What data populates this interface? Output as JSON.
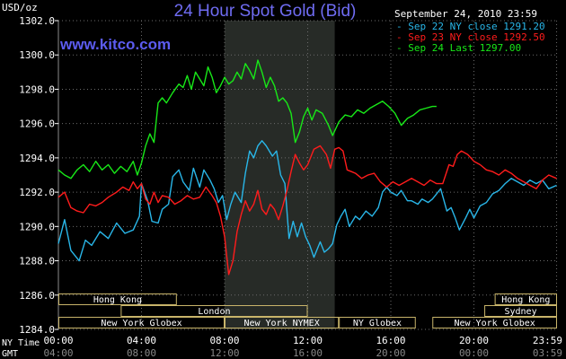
{
  "chart_data": {
    "type": "line",
    "title": "24 Hour Spot Gold (Bid)",
    "watermark": "www.kitco.com",
    "ylabel": "USD/oz",
    "date": "September 24, 2010 23:59",
    "ylim": [
      1284,
      1302
    ],
    "yticks": [
      "1302.0",
      "1300.0",
      "1298.0",
      "1296.0",
      "1294.0",
      "1292.0",
      "1290.0",
      "1288.0",
      "1286.0",
      "1284.0"
    ],
    "ytick_values": [
      1302,
      1300,
      1298,
      1296,
      1294,
      1292,
      1290,
      1288,
      1286,
      1284
    ],
    "xlim": [
      0,
      24
    ],
    "x_ticks_ny": [
      "00:00",
      "04:00",
      "08:00",
      "12:00",
      "16:00",
      "20:00",
      "23:59"
    ],
    "x_ticks_gmt": [
      "04:00",
      "08:00",
      "12:00",
      "16:00",
      "20:00",
      "00:00",
      "03:59"
    ],
    "x_tick_hours": [
      0,
      4,
      8,
      12,
      16,
      20,
      23.98
    ],
    "ny_time_label": "NY Time",
    "gmt_label": "GMT",
    "highlight_hours": [
      8,
      13.3
    ],
    "series": [
      {
        "name": "Sep 22 NY close 1291.20",
        "color": "#29b6e8",
        "points": [
          [
            0,
            1289.0
          ],
          [
            0.3,
            1290.4
          ],
          [
            0.6,
            1288.6
          ],
          [
            1.0,
            1288.0
          ],
          [
            1.3,
            1289.2
          ],
          [
            1.6,
            1288.9
          ],
          [
            2.0,
            1289.7
          ],
          [
            2.4,
            1289.3
          ],
          [
            2.8,
            1290.2
          ],
          [
            3.2,
            1289.6
          ],
          [
            3.6,
            1289.8
          ],
          [
            3.9,
            1290.6
          ],
          [
            4.0,
            1292.5
          ],
          [
            4.3,
            1291.5
          ],
          [
            4.5,
            1290.3
          ],
          [
            4.8,
            1290.2
          ],
          [
            5.0,
            1291.0
          ],
          [
            5.3,
            1291.3
          ],
          [
            5.5,
            1292.9
          ],
          [
            5.8,
            1293.3
          ],
          [
            6.0,
            1292.6
          ],
          [
            6.3,
            1292.1
          ],
          [
            6.5,
            1293.4
          ],
          [
            6.8,
            1292.3
          ],
          [
            7.0,
            1293.3
          ],
          [
            7.3,
            1292.7
          ],
          [
            7.5,
            1292.2
          ],
          [
            7.7,
            1291.4
          ],
          [
            7.9,
            1291.8
          ],
          [
            8.1,
            1290.4
          ],
          [
            8.3,
            1291.3
          ],
          [
            8.5,
            1292.0
          ],
          [
            8.8,
            1291.4
          ],
          [
            9.0,
            1293.1
          ],
          [
            9.2,
            1294.4
          ],
          [
            9.4,
            1294.0
          ],
          [
            9.6,
            1294.7
          ],
          [
            9.8,
            1295.0
          ],
          [
            10.0,
            1294.7
          ],
          [
            10.3,
            1294.1
          ],
          [
            10.5,
            1294.4
          ],
          [
            10.7,
            1293.0
          ],
          [
            10.9,
            1292.5
          ],
          [
            11.1,
            1289.3
          ],
          [
            11.3,
            1290.3
          ],
          [
            11.5,
            1289.4
          ],
          [
            11.7,
            1290.2
          ],
          [
            11.9,
            1289.4
          ],
          [
            12.1,
            1288.9
          ],
          [
            12.3,
            1288.2
          ],
          [
            12.6,
            1289.1
          ],
          [
            12.8,
            1288.5
          ],
          [
            13.0,
            1288.7
          ],
          [
            13.2,
            1289.0
          ],
          [
            13.4,
            1290.1
          ],
          [
            13.6,
            1290.6
          ],
          [
            13.8,
            1291.0
          ],
          [
            14.0,
            1290.0
          ],
          [
            14.3,
            1290.6
          ],
          [
            14.5,
            1290.4
          ],
          [
            14.8,
            1290.9
          ],
          [
            15.1,
            1290.6
          ],
          [
            15.4,
            1291.1
          ],
          [
            15.6,
            1292.0
          ],
          [
            15.8,
            1292.3
          ],
          [
            16.0,
            1292.0
          ],
          [
            16.3,
            1291.8
          ],
          [
            16.5,
            1292.1
          ],
          [
            16.8,
            1291.5
          ],
          [
            17.0,
            1291.5
          ],
          [
            17.3,
            1291.3
          ],
          [
            17.5,
            1291.6
          ],
          [
            17.8,
            1291.4
          ],
          [
            18.0,
            1291.6
          ],
          [
            18.4,
            1292.2
          ],
          [
            18.7,
            1290.9
          ],
          [
            18.9,
            1291.1
          ],
          [
            19.1,
            1290.5
          ],
          [
            19.3,
            1289.8
          ],
          [
            19.6,
            1290.5
          ],
          [
            19.8,
            1291.0
          ],
          [
            20.0,
            1290.5
          ],
          [
            20.3,
            1291.2
          ],
          [
            20.6,
            1291.4
          ],
          [
            20.9,
            1291.9
          ],
          [
            21.2,
            1292.1
          ],
          [
            21.5,
            1292.5
          ],
          [
            21.8,
            1292.8
          ],
          [
            22.1,
            1292.6
          ],
          [
            22.4,
            1292.4
          ],
          [
            22.7,
            1292.7
          ],
          [
            23.0,
            1292.5
          ],
          [
            23.3,
            1292.7
          ],
          [
            23.6,
            1292.2
          ],
          [
            23.98,
            1292.4
          ]
        ]
      },
      {
        "name": "Sep 23 NY close 1292.50",
        "color": "#ff1c1c",
        "points": [
          [
            0,
            1291.7
          ],
          [
            0.3,
            1292.0
          ],
          [
            0.6,
            1291.1
          ],
          [
            0.9,
            1290.9
          ],
          [
            1.2,
            1290.8
          ],
          [
            1.5,
            1291.3
          ],
          [
            1.8,
            1291.2
          ],
          [
            2.1,
            1291.4
          ],
          [
            2.4,
            1291.7
          ],
          [
            2.8,
            1292.0
          ],
          [
            3.1,
            1292.3
          ],
          [
            3.4,
            1292.1
          ],
          [
            3.6,
            1292.6
          ],
          [
            3.8,
            1292.2
          ],
          [
            4.0,
            1292.5
          ],
          [
            4.2,
            1291.6
          ],
          [
            4.4,
            1291.3
          ],
          [
            4.6,
            1292.0
          ],
          [
            4.8,
            1291.4
          ],
          [
            5.0,
            1291.8
          ],
          [
            5.3,
            1291.7
          ],
          [
            5.6,
            1291.3
          ],
          [
            5.9,
            1291.5
          ],
          [
            6.2,
            1291.8
          ],
          [
            6.5,
            1291.6
          ],
          [
            6.8,
            1291.7
          ],
          [
            7.1,
            1292.3
          ],
          [
            7.4,
            1291.8
          ],
          [
            7.6,
            1291.4
          ],
          [
            7.8,
            1290.6
          ],
          [
            8.0,
            1289.4
          ],
          [
            8.2,
            1287.2
          ],
          [
            8.4,
            1288.0
          ],
          [
            8.6,
            1289.7
          ],
          [
            8.8,
            1290.7
          ],
          [
            9.0,
            1291.5
          ],
          [
            9.2,
            1290.9
          ],
          [
            9.4,
            1291.3
          ],
          [
            9.6,
            1292.1
          ],
          [
            9.8,
            1291.0
          ],
          [
            10.0,
            1290.7
          ],
          [
            10.2,
            1291.3
          ],
          [
            10.4,
            1291.0
          ],
          [
            10.6,
            1290.4
          ],
          [
            10.8,
            1291.2
          ],
          [
            11.0,
            1292.1
          ],
          [
            11.2,
            1293.2
          ],
          [
            11.4,
            1294.2
          ],
          [
            11.6,
            1293.7
          ],
          [
            11.8,
            1293.3
          ],
          [
            12.0,
            1293.6
          ],
          [
            12.3,
            1294.5
          ],
          [
            12.6,
            1294.7
          ],
          [
            12.9,
            1294.2
          ],
          [
            13.1,
            1293.4
          ],
          [
            13.3,
            1294.5
          ],
          [
            13.5,
            1294.6
          ],
          [
            13.7,
            1294.4
          ],
          [
            13.9,
            1293.3
          ],
          [
            14.1,
            1293.2
          ],
          [
            14.3,
            1293.1
          ],
          [
            14.6,
            1292.8
          ],
          [
            14.9,
            1293.0
          ],
          [
            15.2,
            1293.1
          ],
          [
            15.5,
            1292.6
          ],
          [
            15.8,
            1292.3
          ],
          [
            16.1,
            1292.6
          ],
          [
            16.4,
            1292.4
          ],
          [
            16.7,
            1292.6
          ],
          [
            17.0,
            1292.8
          ],
          [
            17.3,
            1292.6
          ],
          [
            17.6,
            1292.4
          ],
          [
            17.9,
            1292.7
          ],
          [
            18.2,
            1292.5
          ],
          [
            18.5,
            1292.5
          ],
          [
            18.8,
            1293.6
          ],
          [
            19.0,
            1293.5
          ],
          [
            19.2,
            1294.2
          ],
          [
            19.4,
            1294.4
          ],
          [
            19.7,
            1294.2
          ],
          [
            20.0,
            1293.8
          ],
          [
            20.3,
            1293.6
          ],
          [
            20.6,
            1293.3
          ],
          [
            20.9,
            1293.2
          ],
          [
            21.2,
            1293.0
          ],
          [
            21.5,
            1293.3
          ],
          [
            21.8,
            1293.1
          ],
          [
            22.1,
            1292.8
          ],
          [
            22.4,
            1292.6
          ],
          [
            22.7,
            1292.4
          ],
          [
            23.0,
            1292.2
          ],
          [
            23.3,
            1292.7
          ],
          [
            23.6,
            1293.0
          ],
          [
            23.98,
            1292.8
          ]
        ]
      },
      {
        "name": "Sep 24 Last 1297.00",
        "color": "#18e818",
        "points": [
          [
            0,
            1293.3
          ],
          [
            0.3,
            1293.0
          ],
          [
            0.6,
            1292.8
          ],
          [
            0.9,
            1293.3
          ],
          [
            1.2,
            1293.6
          ],
          [
            1.5,
            1293.2
          ],
          [
            1.8,
            1293.8
          ],
          [
            2.1,
            1293.3
          ],
          [
            2.4,
            1293.6
          ],
          [
            2.7,
            1293.1
          ],
          [
            3.0,
            1293.5
          ],
          [
            3.3,
            1293.2
          ],
          [
            3.6,
            1293.8
          ],
          [
            3.8,
            1293.0
          ],
          [
            4.0,
            1293.7
          ],
          [
            4.2,
            1294.7
          ],
          [
            4.4,
            1295.4
          ],
          [
            4.6,
            1294.9
          ],
          [
            4.8,
            1297.2
          ],
          [
            5.0,
            1297.5
          ],
          [
            5.2,
            1297.2
          ],
          [
            5.5,
            1297.8
          ],
          [
            5.8,
            1298.3
          ],
          [
            6.0,
            1298.1
          ],
          [
            6.2,
            1298.8
          ],
          [
            6.4,
            1298.0
          ],
          [
            6.6,
            1299.0
          ],
          [
            6.8,
            1298.6
          ],
          [
            7.0,
            1298.2
          ],
          [
            7.2,
            1299.3
          ],
          [
            7.4,
            1298.7
          ],
          [
            7.6,
            1297.8
          ],
          [
            7.8,
            1298.2
          ],
          [
            8.0,
            1298.7
          ],
          [
            8.2,
            1298.3
          ],
          [
            8.4,
            1298.5
          ],
          [
            8.6,
            1299.0
          ],
          [
            8.8,
            1298.6
          ],
          [
            9.0,
            1299.5
          ],
          [
            9.2,
            1299.1
          ],
          [
            9.4,
            1298.6
          ],
          [
            9.6,
            1299.7
          ],
          [
            9.8,
            1299.0
          ],
          [
            10.0,
            1298.1
          ],
          [
            10.2,
            1298.7
          ],
          [
            10.4,
            1298.2
          ],
          [
            10.6,
            1297.3
          ],
          [
            10.8,
            1297.5
          ],
          [
            11.0,
            1297.2
          ],
          [
            11.2,
            1296.6
          ],
          [
            11.4,
            1294.9
          ],
          [
            11.6,
            1295.5
          ],
          [
            11.8,
            1296.4
          ],
          [
            12.0,
            1296.9
          ],
          [
            12.2,
            1296.2
          ],
          [
            12.4,
            1296.8
          ],
          [
            12.7,
            1296.6
          ],
          [
            13.0,
            1295.9
          ],
          [
            13.2,
            1295.3
          ],
          [
            13.5,
            1296.1
          ],
          [
            13.8,
            1296.5
          ],
          [
            14.1,
            1296.4
          ],
          [
            14.4,
            1296.8
          ],
          [
            14.7,
            1296.6
          ],
          [
            15.0,
            1296.9
          ],
          [
            15.3,
            1297.1
          ],
          [
            15.6,
            1297.3
          ],
          [
            15.9,
            1297.0
          ],
          [
            16.2,
            1296.6
          ],
          [
            16.5,
            1295.9
          ],
          [
            16.8,
            1296.3
          ],
          [
            17.1,
            1296.5
          ],
          [
            17.4,
            1296.8
          ],
          [
            17.7,
            1296.9
          ],
          [
            18.0,
            1297.0
          ],
          [
            18.2,
            1297.0
          ]
        ]
      }
    ],
    "markets": [
      {
        "label": "Hong Kong",
        "start": 0,
        "end": 5.7,
        "row": 1
      },
      {
        "label": "Hong Kong",
        "start": 21.0,
        "end": 24,
        "row": 1
      },
      {
        "label": "London",
        "start": 3.0,
        "end": 12.0,
        "row": 2
      },
      {
        "label": "Sydney",
        "start": 20.5,
        "end": 24,
        "row": 2
      },
      {
        "label": "New York Globex",
        "start": 0,
        "end": 8.0,
        "row": 3
      },
      {
        "label": "New York NYMEX",
        "start": 8.0,
        "end": 13.5,
        "row": 3
      },
      {
        "label": "NY Globex",
        "start": 13.5,
        "end": 17.2,
        "row": 3
      },
      {
        "label": "New York Globex",
        "start": 18.0,
        "end": 24,
        "row": 3
      }
    ]
  }
}
